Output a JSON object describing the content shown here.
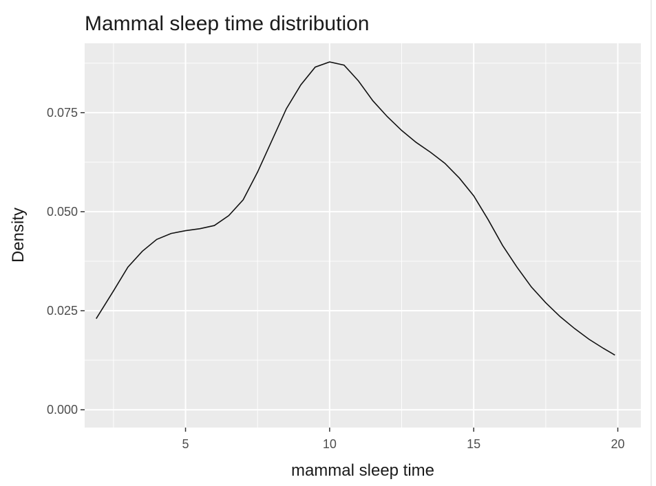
{
  "chart_data": {
    "type": "line",
    "title": "Mammal sleep time distribution",
    "xlabel": "mammal sleep time",
    "ylabel": "Density",
    "xlim": [
      1.5,
      20.8
    ],
    "ylim": [
      -0.0045,
      0.0925
    ],
    "x_ticks": [
      5,
      10,
      15,
      20
    ],
    "x_tick_labels": [
      "5",
      "10",
      "15",
      "20"
    ],
    "y_ticks": [
      0.0,
      0.025,
      0.05,
      0.075
    ],
    "y_tick_labels": [
      "0.000",
      "0.025",
      "0.050",
      "0.075"
    ],
    "x_minor": [
      2.5,
      7.5,
      12.5,
      17.5
    ],
    "y_minor": [
      0.0125,
      0.0375,
      0.0625,
      0.0875
    ],
    "grid": true,
    "legend": "none",
    "colors": {
      "panel": "#ebebeb",
      "grid": "#ffffff",
      "line": "#111111"
    },
    "series": [
      {
        "x": [
          1.9,
          2.5,
          3.0,
          3.5,
          4.0,
          4.5,
          5.0,
          5.5,
          6.0,
          6.5,
          7.0,
          7.5,
          8.0,
          8.5,
          9.0,
          9.5,
          10.0,
          10.5,
          11.0,
          11.5,
          12.0,
          12.5,
          13.0,
          13.5,
          14.0,
          14.5,
          15.0,
          15.5,
          16.0,
          16.5,
          17.0,
          17.5,
          18.0,
          18.5,
          19.0,
          19.5,
          19.9
        ],
        "y": [
          0.023,
          0.03,
          0.036,
          0.04,
          0.043,
          0.0445,
          0.0452,
          0.0457,
          0.0465,
          0.049,
          0.053,
          0.06,
          0.068,
          0.076,
          0.082,
          0.0865,
          0.0878,
          0.087,
          0.083,
          0.078,
          0.074,
          0.0705,
          0.0675,
          0.065,
          0.0622,
          0.0585,
          0.054,
          0.048,
          0.0415,
          0.036,
          0.031,
          0.027,
          0.0235,
          0.0205,
          0.0178,
          0.0155,
          0.0138
        ]
      }
    ]
  }
}
